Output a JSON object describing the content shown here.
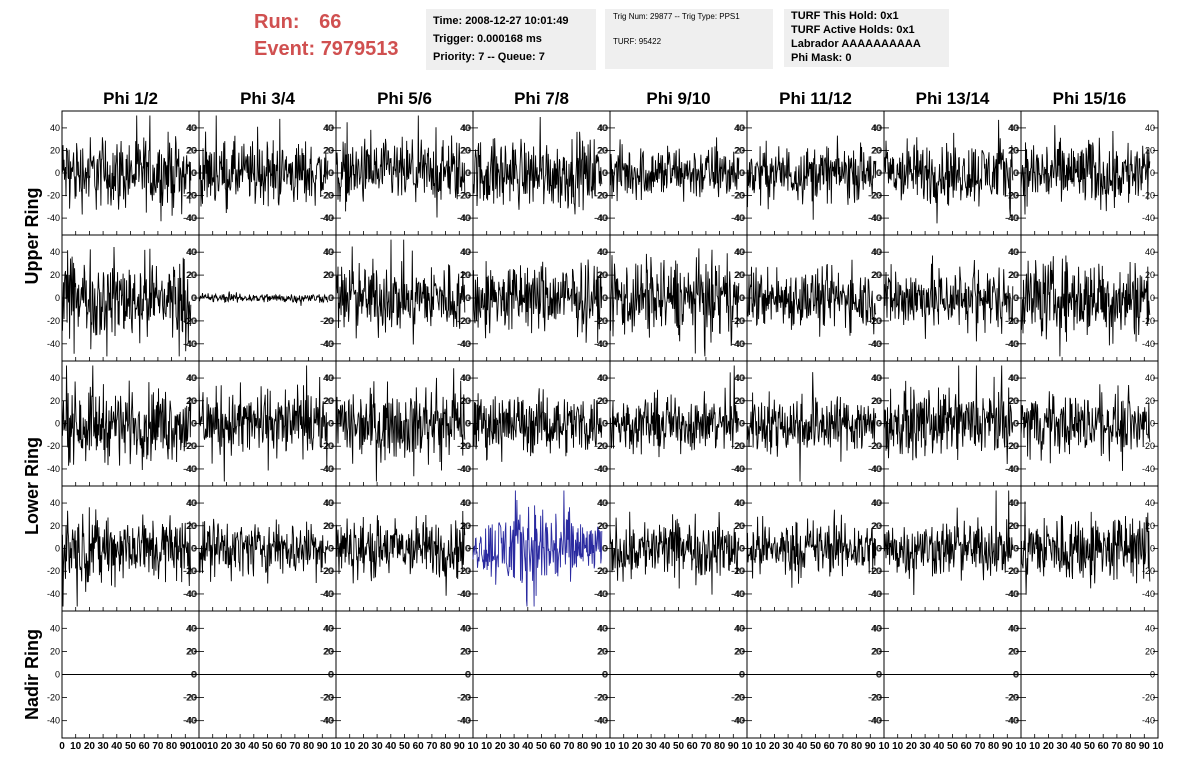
{
  "header": {
    "run_label": "Run:",
    "run_value": "66",
    "event_label": "Event:",
    "event_value": "7979513",
    "time_box": [
      "Time: 2008-12-27 10:01:49",
      "Trigger: 0.000168 ms",
      "Priority: 7 -- Queue: 7"
    ],
    "trig_box": [
      "Trig Num: 29877 -- Trig Type: PPS1",
      "TURF: 95422"
    ],
    "turf_box": [
      "TURF This Hold: 0x1",
      "TURF Active Holds: 0x1",
      "Labrador AAAAAAAAAA",
      "Phi Mask: 0"
    ]
  },
  "colors": {
    "run_text": "#d05050",
    "box_bg": "#efefef",
    "trace": "#000000",
    "highlight_trace": "#2a2aa0"
  },
  "chart_data": {
    "type": "line",
    "columns": [
      "Phi 1/2",
      "Phi 3/4",
      "Phi 5/6",
      "Phi 7/8",
      "Phi 9/10",
      "Phi 11/12",
      "Phi 13/14",
      "Phi 15/16"
    ],
    "rows": [
      "Upper Ring",
      "Lower Ring",
      "Nadir Ring"
    ],
    "subrows": [
      {
        "name": "upper-1",
        "label_group": "Upper Ring"
      },
      {
        "name": "upper-2",
        "label_group": "Upper Ring"
      },
      {
        "name": "lower-1",
        "label_group": "Lower Ring"
      },
      {
        "name": "lower-2",
        "label_group": "Lower Ring"
      },
      {
        "name": "nadir",
        "label_group": "Nadir Ring"
      }
    ],
    "ylim": [
      -55,
      55
    ],
    "yticks": [
      -40,
      -20,
      0,
      20,
      40
    ],
    "xlim": [
      0,
      100
    ],
    "xticks": [
      0,
      10,
      20,
      30,
      40,
      50,
      60,
      70,
      80,
      90,
      100
    ],
    "xtick_labels_first": "0 10 20 30 40 50 60 70 80 90 100",
    "xtick_labels_rest": "10 20 30 40 50 60 70 80 90 10",
    "samples_per_trace": 256,
    "x_end": 94,
    "noise_amplitude": [
      [
        16,
        14,
        14,
        15,
        12,
        12,
        14,
        15
      ],
      [
        18,
        2,
        15,
        15,
        17,
        13,
        14,
        17
      ],
      [
        16,
        15,
        15,
        13,
        12,
        13,
        14,
        13
      ],
      [
        15,
        12,
        13,
        14,
        13,
        12,
        12,
        15
      ],
      [
        0,
        0,
        0,
        0,
        0,
        0,
        0,
        0
      ]
    ],
    "highlight": {
      "subrow": 3,
      "column": 3
    }
  }
}
